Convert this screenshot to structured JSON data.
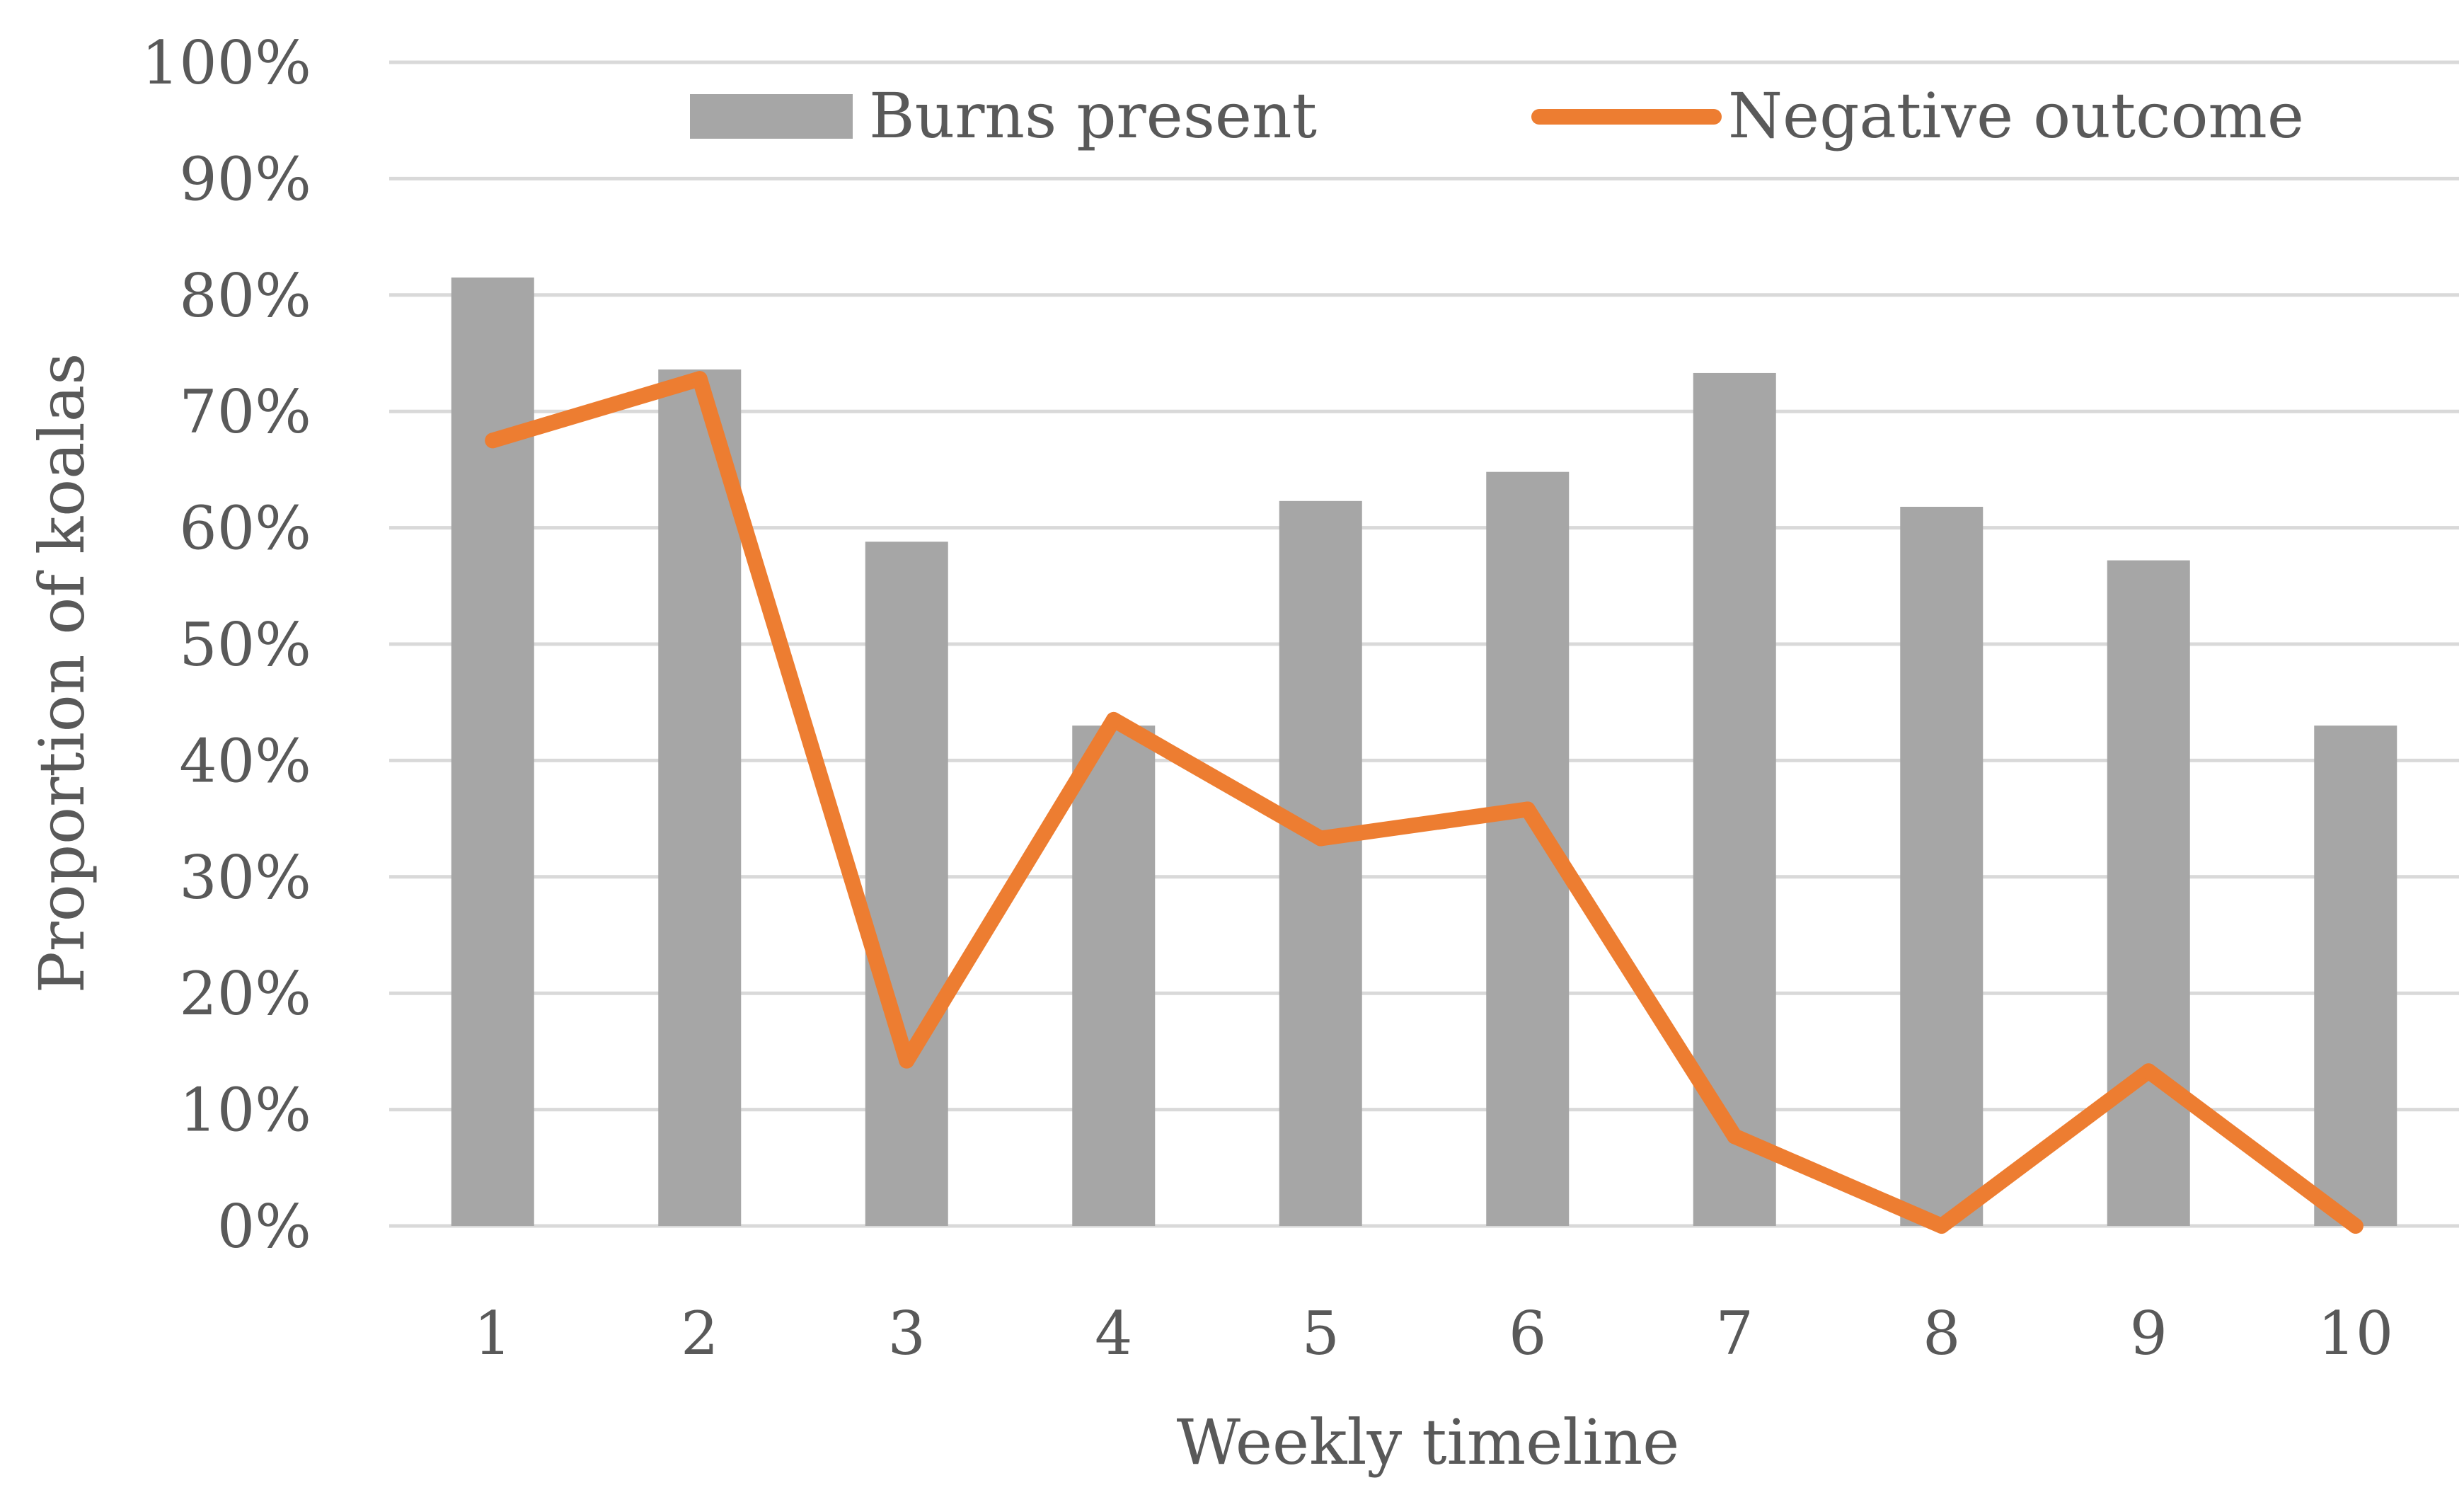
{
  "chart_data": {
    "type": "bar",
    "title": "",
    "xlabel": "Weekly timeline",
    "ylabel": "Proportion of koalas",
    "categories": [
      "1",
      "2",
      "3",
      "4",
      "5",
      "6",
      "7",
      "8",
      "9",
      "10"
    ],
    "ylim": [
      0,
      100
    ],
    "yticks": [
      "0%",
      "10%",
      "20%",
      "30%",
      "40%",
      "50%",
      "60%",
      "70%",
      "80%",
      "90%",
      "100%"
    ],
    "grid": true,
    "legend_position": "top",
    "series": [
      {
        "name": "Burns present",
        "type": "bar",
        "color": "#a6a6a6",
        "values": [
          81.5,
          73.6,
          58.8,
          43.0,
          62.3,
          64.8,
          73.3,
          61.8,
          57.2,
          43.0
        ]
      },
      {
        "name": "Negative outcome",
        "type": "line",
        "color": "#ed7d31",
        "values": [
          67.5,
          72.8,
          14.2,
          43.5,
          33.3,
          35.8,
          7.7,
          0.0,
          13.3,
          0.0
        ]
      }
    ],
    "gridline_color": "#d9d9d9"
  }
}
